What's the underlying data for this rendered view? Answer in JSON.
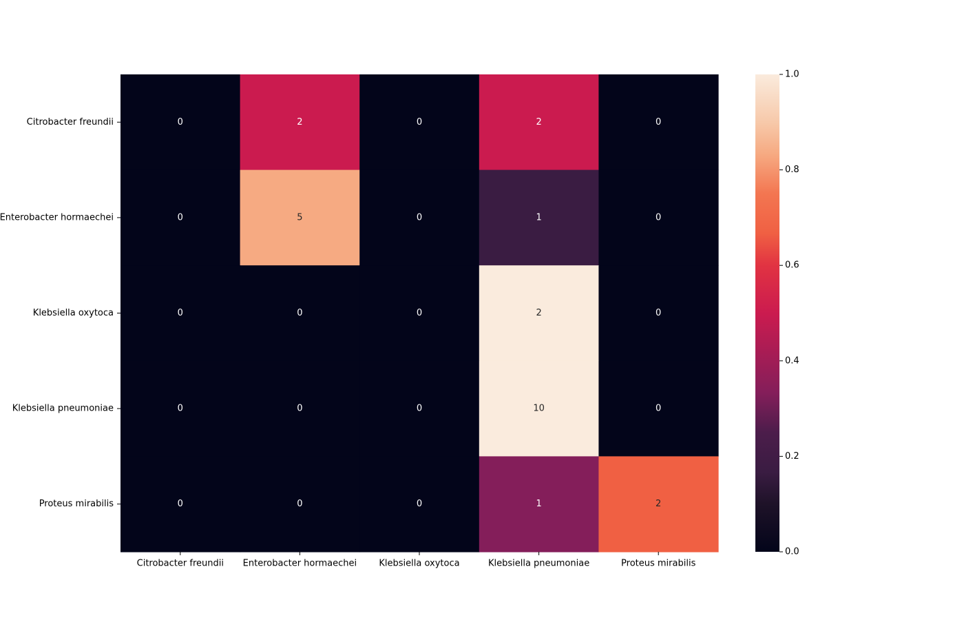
{
  "chart_data": {
    "type": "heatmap",
    "title": "",
    "xlabel": "",
    "ylabel": "",
    "row_labels": [
      "Citrobacter freundii",
      "Enterobacter hormaechei",
      "Klebsiella oxytoca",
      "Klebsiella pneumoniae",
      "Proteus mirabilis"
    ],
    "col_labels": [
      "Citrobacter freundii",
      "Enterobacter hormaechei",
      "Klebsiella oxytoca",
      "Klebsiella pneumoniae",
      "Proteus mirabilis"
    ],
    "counts": [
      [
        0,
        2,
        0,
        2,
        0
      ],
      [
        0,
        5,
        0,
        1,
        0
      ],
      [
        0,
        0,
        0,
        2,
        0
      ],
      [
        0,
        0,
        0,
        10,
        0
      ],
      [
        0,
        0,
        0,
        1,
        2
      ]
    ],
    "normalized": [
      [
        0,
        0.5,
        0,
        0.5,
        0
      ],
      [
        0,
        0.833,
        0,
        0.167,
        0
      ],
      [
        0,
        0,
        0,
        1.0,
        0
      ],
      [
        0,
        0,
        0,
        1.0,
        0
      ],
      [
        0,
        0,
        0,
        0.333,
        0.667
      ]
    ],
    "colorbar": {
      "min": 0.0,
      "max": 1.0,
      "ticks": [
        "0.0",
        "0.2",
        "0.4",
        "0.6",
        "0.8",
        "1.0"
      ],
      "colormap": "rocket"
    },
    "colormap_stops": [
      {
        "v": 0.0,
        "color": "#03051a"
      },
      {
        "v": 0.1,
        "color": "#1e1228"
      },
      {
        "v": 0.167,
        "color": "#3a1c42"
      },
      {
        "v": 0.25,
        "color": "#4c1d4b"
      },
      {
        "v": 0.333,
        "color": "#841e5a"
      },
      {
        "v": 0.5,
        "color": "#cb1b4f"
      },
      {
        "v": 0.6,
        "color": "#e13342"
      },
      {
        "v": 0.667,
        "color": "#f06043"
      },
      {
        "v": 0.75,
        "color": "#f37651"
      },
      {
        "v": 0.833,
        "color": "#f6aa82"
      },
      {
        "v": 0.9,
        "color": "#f7c9aa"
      },
      {
        "v": 1.0,
        "color": "#faebdd"
      }
    ]
  }
}
